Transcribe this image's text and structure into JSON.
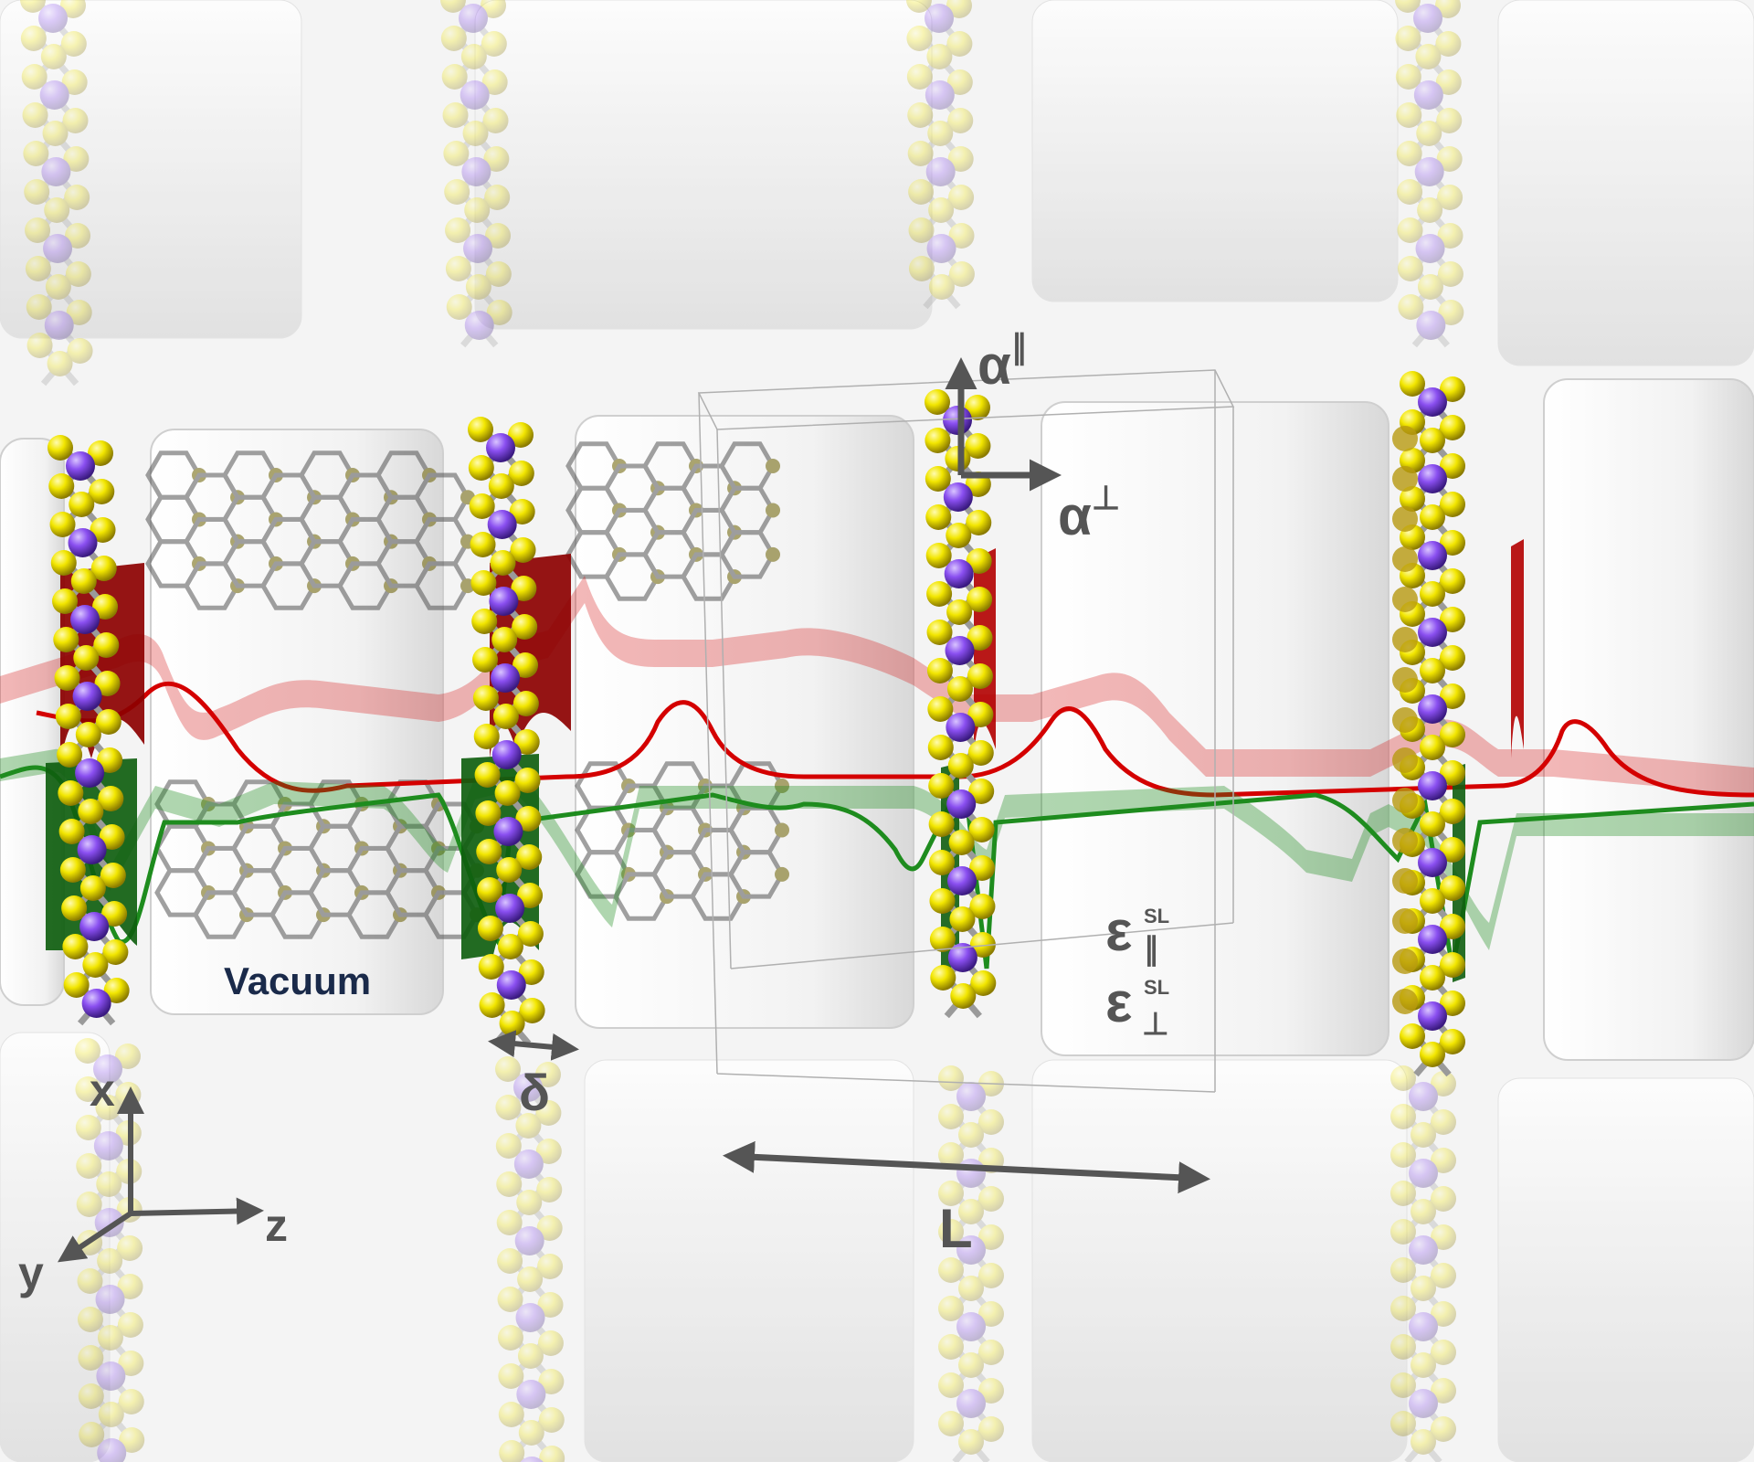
{
  "labels": {
    "vacuum": "Vacuum",
    "delta": "δ",
    "length": "L",
    "alpha": "α",
    "parallel": "∥",
    "perp": "⊥",
    "epsilon": "ε",
    "sl": "SL",
    "axis_x": "x",
    "axis_y": "y",
    "axis_z": "z"
  },
  "colors": {
    "background": "#f4f4f4",
    "sulfur": "#f2e600",
    "metal": "#8a4ff0",
    "bond": "#9a9a9a",
    "field_red": "#d40000",
    "field_green": "#1e8c1e",
    "vacuum_label": "#1a2a4a",
    "annotation": "#555555"
  }
}
